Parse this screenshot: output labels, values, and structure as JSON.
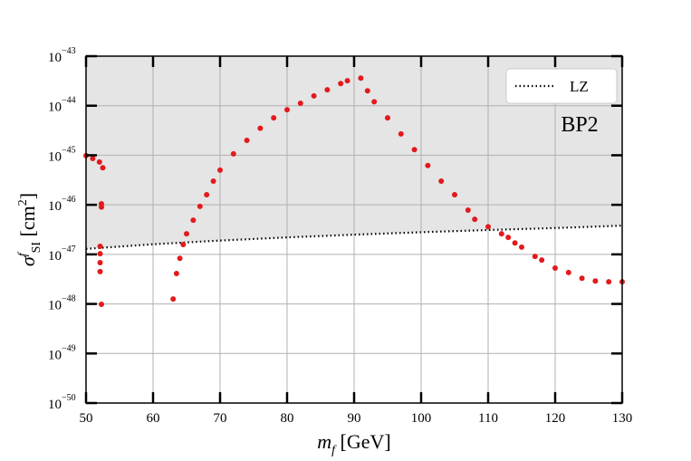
{
  "chart_data": {
    "type": "scatter",
    "annotation": "BP2",
    "xlabel_parts": [
      {
        "text": "m",
        "pos": "base",
        "italic": true
      },
      {
        "text": "f",
        "pos": "sub",
        "italic": true
      },
      {
        "text": " [GeV]",
        "pos": "base"
      }
    ],
    "ylabel_parts": [
      {
        "text": "σ",
        "pos": "base",
        "italic": true
      },
      {
        "text": "f",
        "pos": "sup",
        "italic": true
      },
      {
        "text": "SI",
        "pos": "sub"
      },
      {
        "text": " [cm",
        "pos": "base"
      },
      {
        "text": "2",
        "pos": "sup"
      },
      {
        "text": "]",
        "pos": "base"
      }
    ],
    "xlim": [
      50,
      130
    ],
    "xticks": [
      50,
      60,
      70,
      80,
      90,
      100,
      110,
      120,
      130
    ],
    "ylim": [
      1e-50,
      1e-43
    ],
    "log_y": true,
    "yticks": [
      {
        "value": 1e-50,
        "label": "10",
        "exponent": "−50"
      },
      {
        "value": 1e-49,
        "label": "10",
        "exponent": "−49"
      },
      {
        "value": 1e-48,
        "label": "10",
        "exponent": "−48"
      },
      {
        "value": 1e-47,
        "label": "10",
        "exponent": "−47"
      },
      {
        "value": 1e-46,
        "label": "10",
        "exponent": "−46"
      },
      {
        "value": 1e-45,
        "label": "10",
        "exponent": "−45"
      },
      {
        "value": 1e-44,
        "label": "10",
        "exponent": "−44"
      },
      {
        "value": 1e-43,
        "label": "10",
        "exponent": "−43"
      }
    ],
    "grid": true,
    "legend_corner": "upper right",
    "series": [
      {
        "name": "LZ",
        "style": "dotted-line",
        "color": "#000000",
        "excluded_fill": "#e5e5e5",
        "x": [
          50,
          60,
          70,
          80,
          90,
          100,
          110,
          120,
          130
        ],
        "values": [
          1.29e-47,
          1.6e-47,
          1.9e-47,
          2.2e-47,
          2.5e-47,
          2.8e-47,
          3.1e-47,
          3.4e-47,
          3.8e-47
        ]
      },
      {
        "style": "points",
        "color": "#e31a1c",
        "x": [
          50,
          51,
          52,
          52.5,
          52.3,
          52.3,
          52.1,
          52.1,
          52.1,
          52.1,
          52.3,
          63,
          63.5,
          64,
          64.5,
          65,
          66,
          67,
          68,
          69,
          70,
          72,
          74,
          76,
          78,
          80,
          82,
          84,
          86,
          88,
          89,
          91,
          92,
          93,
          95,
          97,
          99,
          101,
          103,
          105,
          107,
          108,
          110,
          112,
          113,
          114,
          115,
          117,
          118,
          120,
          122,
          124,
          126,
          128,
          130
        ],
        "values": [
          9.8e-46,
          8.6e-46,
          7.3e-46,
          5.6e-46,
          1.05e-46,
          9e-47,
          1.45e-47,
          1.03e-47,
          6.8e-48,
          4.5e-48,
          9.8e-49,
          1.26e-48,
          4.1e-48,
          8.3e-48,
          1.58e-47,
          2.6e-47,
          4.9e-47,
          9.3e-47,
          1.6e-46,
          3e-46,
          5e-46,
          1.07e-45,
          2e-45,
          3.5e-45,
          5.7e-45,
          8.3e-45,
          1.12e-44,
          1.58e-44,
          2.1e-44,
          2.8e-44,
          3.2e-44,
          3.6e-44,
          2e-44,
          1.2e-44,
          5.7e-45,
          2.7e-45,
          1.3e-45,
          6.2e-46,
          3e-46,
          1.6e-46,
          7.8e-47,
          5.1e-47,
          3.6e-47,
          2.6e-47,
          2.2e-47,
          1.7e-47,
          1.4e-47,
          9.1e-48,
          7.7e-48,
          5.3e-48,
          4.3e-48,
          3.3e-48,
          2.9e-48,
          2.8e-48,
          2.8e-48
        ]
      }
    ]
  }
}
